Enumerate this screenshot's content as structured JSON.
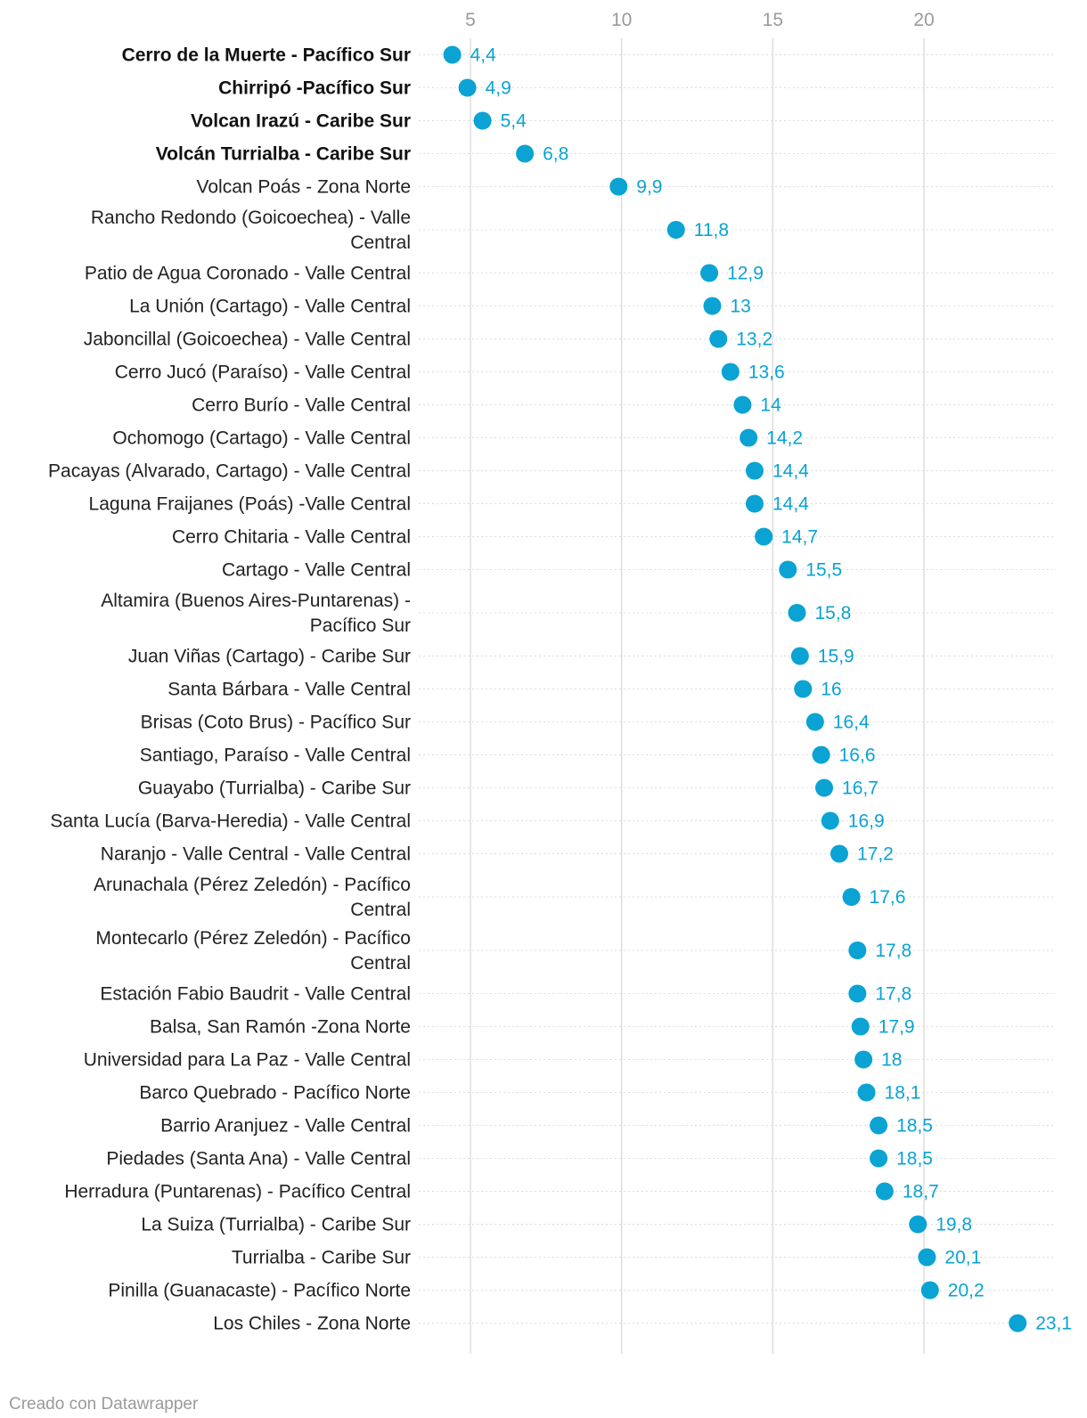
{
  "chart_data": {
    "type": "scatter",
    "title": "",
    "xlabel": "",
    "ylabel": "",
    "x_ticks": [
      5,
      10,
      15,
      20
    ],
    "xlim": [
      3.5,
      23.5
    ],
    "grid": true,
    "dot_color": "#0aa3d3",
    "categories": [
      {
        "label": "Cerro de la Muerte - Pacífico Sur",
        "value": 4.4,
        "display": "4,4",
        "bold": true
      },
      {
        "label": "Chirripó -Pacífico Sur",
        "value": 4.9,
        "display": "4,9",
        "bold": true
      },
      {
        "label": "Volcan Irazú - Caribe Sur",
        "value": 5.4,
        "display": "5,4",
        "bold": true
      },
      {
        "label": "Volcán Turrialba - Caribe Sur",
        "value": 6.8,
        "display": "6,8",
        "bold": true
      },
      {
        "label": "Volcan Poás - Zona Norte",
        "value": 9.9,
        "display": "9,9"
      },
      {
        "label": "Rancho Redondo (Goicoechea) - Valle Central",
        "lines": [
          "Rancho Redondo (Goicoechea) - Valle",
          "Central"
        ],
        "value": 11.8,
        "display": "11,8"
      },
      {
        "label": "Patio de Agua Coronado - Valle Central",
        "value": 12.9,
        "display": "12,9"
      },
      {
        "label": "La Unión (Cartago) - Valle Central",
        "value": 13.0,
        "display": "13"
      },
      {
        "label": "Jaboncillal (Goicoechea) - Valle Central",
        "value": 13.2,
        "display": "13,2"
      },
      {
        "label": "Cerro Jucó (Paraíso) - Valle Central",
        "value": 13.6,
        "display": "13,6"
      },
      {
        "label": "Cerro Burío - Valle Central",
        "value": 14.0,
        "display": "14"
      },
      {
        "label": "Ochomogo (Cartago) - Valle Central",
        "value": 14.2,
        "display": "14,2"
      },
      {
        "label": "Pacayas (Alvarado, Cartago) - Valle Central",
        "value": 14.4,
        "display": "14,4"
      },
      {
        "label": "Laguna Fraijanes (Poás) -Valle Central",
        "value": 14.4,
        "display": "14,4"
      },
      {
        "label": "Cerro Chitaria - Valle Central",
        "value": 14.7,
        "display": "14,7"
      },
      {
        "label": "Cartago - Valle Central",
        "value": 15.5,
        "display": "15,5"
      },
      {
        "label": "Altamira (Buenos Aires-Puntarenas) - Pacífico Sur",
        "lines": [
          "Altamira (Buenos Aires-Puntarenas) -",
          "Pacífico Sur"
        ],
        "value": 15.8,
        "display": "15,8"
      },
      {
        "label": "Juan Viñas (Cartago) - Caribe Sur",
        "value": 15.9,
        "display": "15,9"
      },
      {
        "label": "Santa Bárbara - Valle Central",
        "value": 16.0,
        "display": "16"
      },
      {
        "label": "Brisas (Coto Brus) - Pacífico Sur",
        "value": 16.4,
        "display": "16,4"
      },
      {
        "label": "Santiago, Paraíso - Valle Central",
        "value": 16.6,
        "display": "16,6"
      },
      {
        "label": "Guayabo (Turrialba) - Caribe Sur",
        "value": 16.7,
        "display": "16,7"
      },
      {
        "label": "Santa Lucía (Barva-Heredia) - Valle Central",
        "value": 16.9,
        "display": "16,9"
      },
      {
        "label": "Naranjo - Valle Central - Valle Central",
        "value": 17.2,
        "display": "17,2"
      },
      {
        "label": "Arunachala (Pérez Zeledón) - Pacífico Central",
        "lines": [
          "Arunachala (Pérez Zeledón) - Pacífico",
          "Central"
        ],
        "value": 17.6,
        "display": "17,6"
      },
      {
        "label": "Montecarlo (Pérez Zeledón) - Pacífico Central",
        "lines": [
          "Montecarlo (Pérez Zeledón) - Pacífico",
          "Central"
        ],
        "value": 17.8,
        "display": "17,8"
      },
      {
        "label": "Estación Fabio Baudrit - Valle Central",
        "value": 17.8,
        "display": "17,8"
      },
      {
        "label": "Balsa, San Ramón -Zona Norte",
        "value": 17.9,
        "display": "17,9"
      },
      {
        "label": "Universidad para La Paz - Valle Central",
        "value": 18.0,
        "display": "18"
      },
      {
        "label": "Barco Quebrado - Pacífico Norte",
        "value": 18.1,
        "display": "18,1"
      },
      {
        "label": "Barrio Aranjuez - Valle Central",
        "value": 18.5,
        "display": "18,5"
      },
      {
        "label": "Piedades (Santa Ana) - Valle Central",
        "value": 18.5,
        "display": "18,5"
      },
      {
        "label": "Herradura (Puntarenas) - Pacífico Central",
        "value": 18.7,
        "display": "18,7"
      },
      {
        "label": "La Suiza (Turrialba) - Caribe Sur",
        "value": 19.8,
        "display": "19,8"
      },
      {
        "label": "Turrialba - Caribe Sur",
        "value": 20.1,
        "display": "20,1"
      },
      {
        "label": "Pinilla (Guanacaste) - Pacífico Norte",
        "value": 20.2,
        "display": "20,2"
      },
      {
        "label": "Los Chiles - Zona Norte",
        "value": 23.1,
        "display": "23,1"
      }
    ]
  },
  "footer": {
    "credit": "Creado con Datawrapper"
  }
}
